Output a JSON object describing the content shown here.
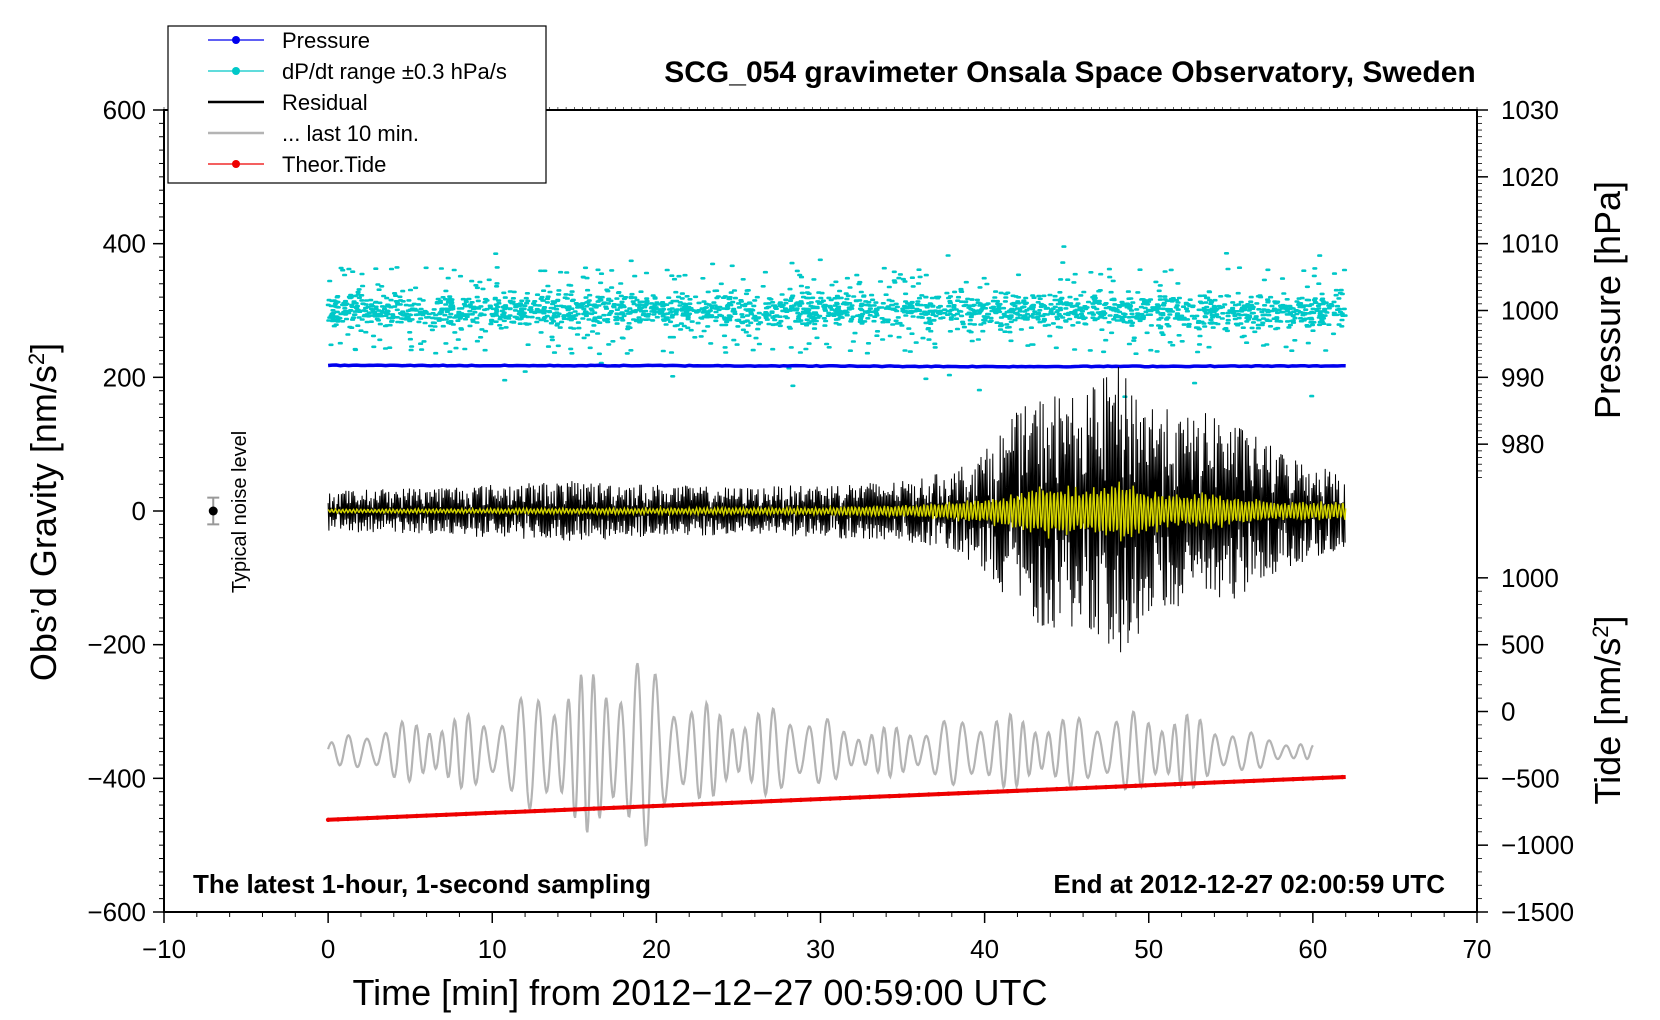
{
  "chart_data": {
    "type": "line",
    "title": "SCG_054 gravimeter Onsala Space Observatory, Sweden",
    "xlabel": "Time [min] from 2012−12−27 00:59:00 UTC",
    "ylabel": "Obs’d Gravity [nm/s²]",
    "ylabel_main": "Obs’d Gravity [nm/s",
    "ylabel_sup": "2",
    "ylabel_end": "]",
    "y2label": "Pressure [hPa]",
    "y3label_main": "Tide [nm/s",
    "y3label_sup": "2",
    "y3label_end": "]",
    "xlim": [
      -10,
      70
    ],
    "ylim": [
      -600,
      600
    ],
    "x_ticks": [
      -10,
      0,
      10,
      20,
      30,
      40,
      50,
      60,
      70
    ],
    "x_tick_labels": [
      "−10",
      "0",
      "10",
      "20",
      "30",
      "40",
      "50",
      "60",
      "70"
    ],
    "y_ticks": [
      600,
      400,
      200,
      0,
      -200,
      -400,
      -600
    ],
    "y_tick_labels": [
      "600",
      "400",
      "200",
      "0",
      "−200",
      "−400",
      "−600"
    ],
    "pressure_axis": {
      "ticks": [
        1030,
        1020,
        1010,
        1000,
        990,
        980
      ],
      "labels": [
        "1030",
        "1020",
        "1010",
        "1000",
        "990",
        "980"
      ],
      "gravity_at_1000": 300,
      "gravity_per_hPa": 10
    },
    "tide_axis": {
      "ticks": [
        1000,
        500,
        0,
        -500,
        -1000,
        -1500
      ],
      "labels": [
        "1000",
        "500",
        "0",
        "−500",
        "−1000",
        "−1500"
      ],
      "gravity_at_0": -300,
      "gravity_per_unit": 0.2
    },
    "legend": {
      "placement": "top-left",
      "entries": [
        {
          "label": "Pressure",
          "color": "#0000ee",
          "style": "line-dot"
        },
        {
          "label": "dP/dt range ±0.3 hPa/s",
          "color": "#00c8c8",
          "style": "line-dot"
        },
        {
          "label": "Residual",
          "color": "#000000",
          "style": "line"
        },
        {
          "label": "... last 10 min.",
          "color": "#b4b4b4",
          "style": "line"
        },
        {
          "label": "Theor.Tide",
          "color": "#ee0000",
          "style": "line-dot"
        }
      ]
    },
    "series": [
      {
        "name": "Pressure",
        "color": "#0000ee",
        "units": "gravity-axis",
        "x": [
          0,
          10,
          20,
          30,
          40,
          50,
          62
        ],
        "values": [
          218,
          217.5,
          217.5,
          217,
          216,
          216.5,
          217
        ]
      },
      {
        "name": "dP/dt range ±0.3 hPa/s",
        "color": "#00c8c8",
        "style": "scatter",
        "center": 300,
        "typical_spread": 15,
        "outlier_range": [
          170,
          400
        ],
        "x_range": [
          0,
          62
        ]
      },
      {
        "name": "Residual",
        "color": "#000000",
        "x": [
          0,
          5,
          10,
          15,
          20,
          25,
          30,
          35,
          38,
          40,
          42,
          44,
          46,
          48,
          50,
          52,
          54,
          56,
          58,
          60,
          62
        ],
        "envelope": [
          30,
          35,
          40,
          45,
          40,
          35,
          40,
          45,
          60,
          90,
          150,
          180,
          170,
          220,
          170,
          140,
          150,
          120,
          90,
          70,
          60
        ]
      },
      {
        "name": "Residual (smoothed)",
        "color": "#d4d400",
        "x": [
          0,
          10,
          20,
          30,
          36,
          40,
          42,
          44,
          46,
          48,
          50,
          52,
          54,
          56,
          58,
          60,
          62
        ],
        "envelope": [
          3,
          4,
          5,
          6,
          10,
          20,
          30,
          45,
          35,
          50,
          35,
          25,
          30,
          20,
          15,
          15,
          15
        ]
      },
      {
        "name": "... last 10 min.",
        "color": "#b4b4b4",
        "x": [
          0,
          3,
          6,
          10,
          14,
          17,
          19,
          22,
          25,
          28,
          32,
          36,
          40,
          44,
          48,
          52,
          56,
          60
        ],
        "center": -360,
        "envelope": [
          15,
          40,
          50,
          60,
          110,
          130,
          150,
          80,
          60,
          70,
          35,
          40,
          60,
          50,
          60,
          60,
          30,
          10
        ]
      },
      {
        "name": "Theor.Tide",
        "color": "#ee0000",
        "x": [
          0,
          62
        ],
        "values": [
          -462,
          -398
        ]
      }
    ],
    "noise_marker": {
      "x": -7,
      "value": 0,
      "error": 20,
      "label": "Typical noise level"
    },
    "annotations": {
      "bottom_left": "The latest 1-hour, 1-second sampling",
      "bottom_right": "End at 2012-12-27 02:00:59 UTC"
    },
    "grid": false
  }
}
